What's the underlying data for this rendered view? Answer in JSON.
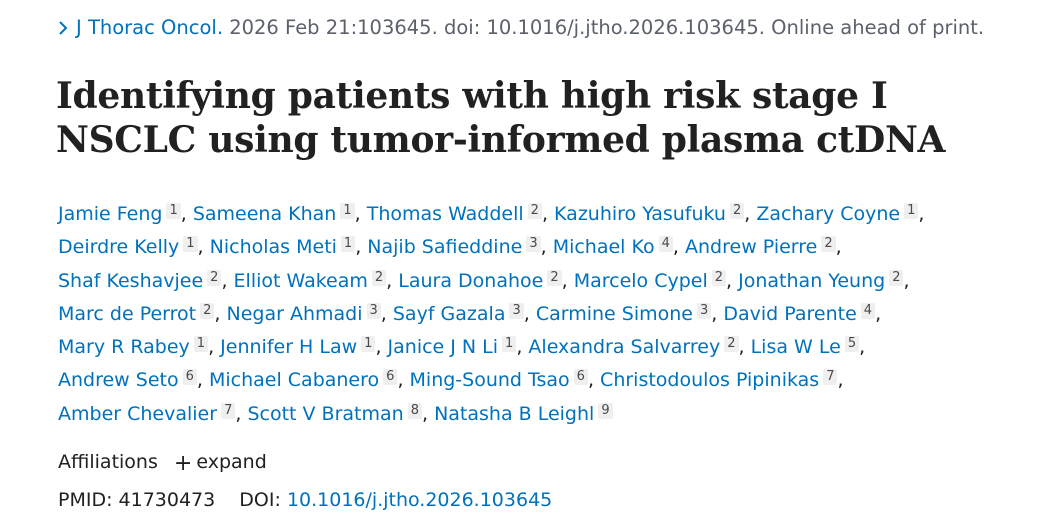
{
  "citation": {
    "journal": "J Thorac Oncol.",
    "details": " 2026 Feb 21:103645. doi: 10.1016/j.jtho.2026.103645. Online ahead of print."
  },
  "title": "Identifying patients with high risk stage I NSCLC using tumor-informed plasma ctDNA",
  "authors": [
    {
      "name": "Jamie Feng",
      "aff": "1"
    },
    {
      "name": "Sameena Khan",
      "aff": "1"
    },
    {
      "name": "Thomas Waddell",
      "aff": "2"
    },
    {
      "name": "Kazuhiro Yasufuku",
      "aff": "2"
    },
    {
      "name": "Zachary Coyne",
      "aff": "1"
    },
    {
      "name": "Deirdre Kelly",
      "aff": "1"
    },
    {
      "name": "Nicholas Meti",
      "aff": "1"
    },
    {
      "name": "Najib Safieddine",
      "aff": "3"
    },
    {
      "name": "Michael Ko",
      "aff": "4"
    },
    {
      "name": "Andrew Pierre",
      "aff": "2"
    },
    {
      "name": "Shaf Keshavjee",
      "aff": "2"
    },
    {
      "name": "Elliot Wakeam",
      "aff": "2"
    },
    {
      "name": "Laura Donahoe",
      "aff": "2"
    },
    {
      "name": "Marcelo Cypel",
      "aff": "2"
    },
    {
      "name": "Jonathan Yeung",
      "aff": "2"
    },
    {
      "name": "Marc de Perrot",
      "aff": "2"
    },
    {
      "name": "Negar Ahmadi",
      "aff": "3"
    },
    {
      "name": "Sayf Gazala",
      "aff": "3"
    },
    {
      "name": "Carmine Simone",
      "aff": "3"
    },
    {
      "name": "David Parente",
      "aff": "4"
    },
    {
      "name": "Mary R Rabey",
      "aff": "1"
    },
    {
      "name": "Jennifer H Law",
      "aff": "1"
    },
    {
      "name": "Janice J N Li",
      "aff": "1"
    },
    {
      "name": "Alexandra Salvarrey",
      "aff": "2"
    },
    {
      "name": "Lisa W Le",
      "aff": "5"
    },
    {
      "name": "Andrew Seto",
      "aff": "6"
    },
    {
      "name": "Michael Cabanero",
      "aff": "6"
    },
    {
      "name": "Ming-Sound Tsao",
      "aff": "6"
    },
    {
      "name": "Christodoulos Pipinikas",
      "aff": "7"
    },
    {
      "name": "Amber Chevalier",
      "aff": "7"
    },
    {
      "name": "Scott V Bratman",
      "aff": "8"
    },
    {
      "name": "Natasha B Leighl",
      "aff": "9"
    }
  ],
  "affiliations": {
    "label": "Affiliations",
    "plus": "+",
    "expand_label": "expand"
  },
  "ids": {
    "pmid_label": "PMID: ",
    "pmid": "41730473",
    "doi_label": "DOI: ",
    "doi": "10.1016/j.jtho.2026.103645"
  }
}
